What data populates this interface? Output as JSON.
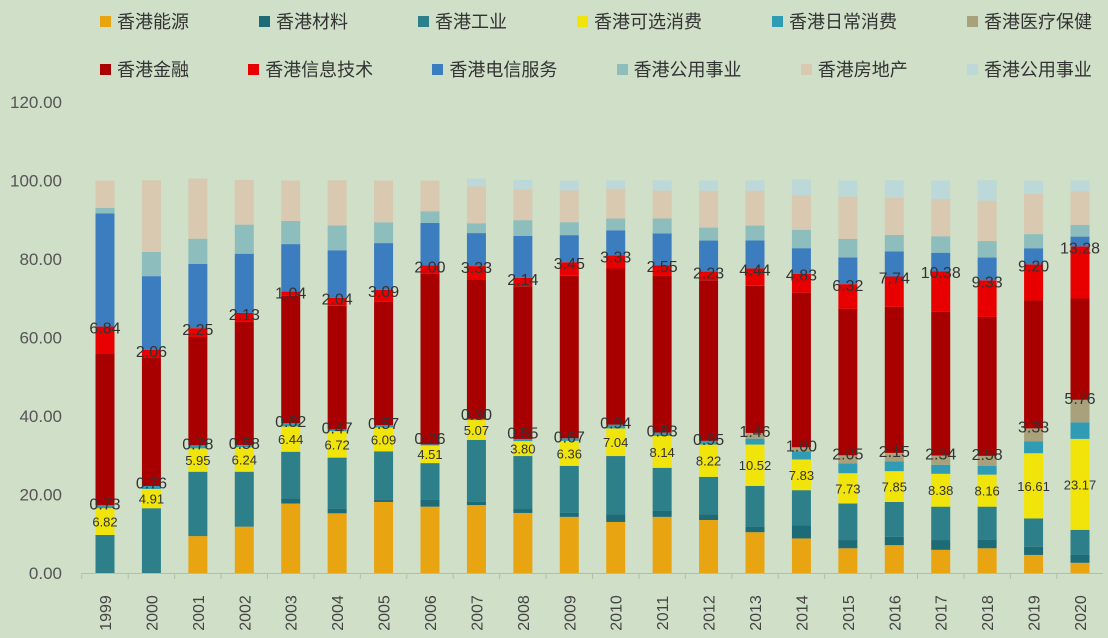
{
  "chart_data": {
    "type": "bar",
    "stacked": true,
    "title": "",
    "xlabel": "",
    "ylabel": "",
    "ylim": [
      0,
      120
    ],
    "yticks": [
      "0.00",
      "20.00",
      "40.00",
      "60.00",
      "80.00",
      "100.00",
      "120.00"
    ],
    "grid": false,
    "legend_position": "top",
    "categories": [
      "1999",
      "2000",
      "2001",
      "2002",
      "2003",
      "2004",
      "2005",
      "2006",
      "2007",
      "2008",
      "2009",
      "2010",
      "2011",
      "2012",
      "2013",
      "2014",
      "2015",
      "2016",
      "2017",
      "2018",
      "2019",
      "2020"
    ],
    "series": [
      {
        "name": "香港能源",
        "color": "#e8a511",
        "values": [
          0,
          0,
          9.4,
          11.8,
          17.7,
          15.2,
          18.1,
          16.9,
          17.3,
          15.3,
          14.3,
          13,
          14.3,
          13.5,
          10.4,
          8.8,
          6.3,
          7.1,
          5.9,
          6.3,
          4.6,
          2.6
        ]
      },
      {
        "name": "香港材料",
        "color": "#1e6b78",
        "values": [
          0,
          0,
          0,
          0,
          1.3,
          1.2,
          0.6,
          1.8,
          0.8,
          1,
          1,
          2,
          1.5,
          1.5,
          1.5,
          3.4,
          2.1,
          2.1,
          2.5,
          2.3,
          2.1,
          2
        ]
      },
      {
        "name": "香港工业",
        "color": "#2d7f8a",
        "values": [
          9.7,
          16.5,
          16.4,
          14,
          11.9,
          13,
          12.3,
          9.3,
          15.8,
          13.5,
          12,
          14.8,
          11,
          9.5,
          10.3,
          8.9,
          9.3,
          8.9,
          8.5,
          8.3,
          7.2,
          6.4
        ]
      },
      {
        "name": "香港可选消费",
        "color": "#f0e40a",
        "values": [
          6.82,
          4.91,
          5.95,
          6.24,
          6.44,
          6.72,
          6.09,
          4.51,
          5.07,
          3.8,
          6.36,
          7.04,
          8.14,
          8.22,
          10.52,
          7.83,
          7.73,
          7.85,
          8.38,
          8.16,
          16.61,
          23.17
        ],
        "labels": [
          "6.82",
          "4.91",
          "5.95",
          "6.24",
          "6.44",
          "6.72",
          "6.09",
          "4.51",
          "5.07",
          "3.80",
          "6.36",
          "7.04",
          "8.14",
          "8.22",
          "10.52",
          "7.83",
          "7.73",
          "7.85",
          "8.38",
          "8.16",
          "16.61",
          "23.17"
        ]
      },
      {
        "name": "香港日常消费",
        "color": "#2f9bb4",
        "values": [
          0.73,
          0.76,
          0.78,
          0.58,
          0.82,
          0.47,
          0.57,
          0.26,
          0.3,
          0.55,
          0.67,
          0.94,
          0.83,
          0.95,
          1.5,
          2.1,
          2.5,
          2.5,
          2.3,
          2.2,
          3,
          4.2
        ],
        "labels": [
          "0.73",
          "0.76",
          "0.78",
          "0.58",
          "0.82",
          "0.47",
          "0.57",
          "0.26",
          "0.30",
          "0.55",
          "0.67",
          "0.94",
          "0.83",
          "0.95",
          null,
          null,
          null,
          null,
          null,
          null,
          null,
          null
        ]
      },
      {
        "name": "香港医疗保健",
        "color": "#a9a17c",
        "values": [
          0,
          0,
          0,
          0,
          0,
          0,
          0,
          0,
          0,
          0,
          0,
          0,
          0,
          0,
          1.46,
          1.0,
          2.05,
          2.15,
          2.34,
          2.58,
          3.33,
          5.76
        ],
        "labels": [
          null,
          null,
          null,
          null,
          null,
          null,
          null,
          null,
          null,
          null,
          null,
          null,
          null,
          null,
          "1.46",
          "1.00",
          "2.05",
          "2.15",
          "2.34",
          "2.58",
          "3.33",
          "5.76"
        ]
      },
      {
        "name": "香港金融",
        "color": "#a80000",
        "values": [
          38.7,
          32.6,
          27.6,
          31.5,
          32.5,
          31.5,
          31.4,
          43.6,
          35.6,
          38.9,
          41.4,
          39.8,
          40.1,
          40.9,
          37.5,
          39.4,
          37.3,
          37.2,
          36.6,
          35.4,
          32.6,
          25.8
        ]
      },
      {
        "name": "香港信息技术",
        "color": "#e80000",
        "values": [
          6.84,
          2.06,
          2.25,
          2.13,
          1.04,
          2.04,
          3.09,
          2.0,
          3.33,
          2.14,
          3.45,
          3.33,
          2.55,
          2.23,
          4.44,
          4.83,
          6.32,
          7.74,
          10.38,
          9.33,
          9.2,
          13.28
        ],
        "labels": [
          "6.84",
          "2.06",
          "2.25",
          "2.13",
          "1.04",
          "2.04",
          "3.09",
          "2.00",
          "3.33",
          "2.14",
          "3.45",
          "3.33",
          "2.55",
          "2.23",
          "4.44",
          "4.83",
          "6.32",
          "7.74",
          "10.38",
          "9.33",
          "9.20",
          "13.28"
        ]
      },
      {
        "name": "香港电信服务",
        "color": "#3c7dbf",
        "values": [
          28.8,
          18.8,
          16.4,
          15.1,
          12.1,
          12.1,
          11.9,
          10.8,
          8.4,
          10.7,
          6.9,
          6.4,
          8.1,
          7.9,
          7.1,
          6.5,
          6.8,
          6.4,
          4.7,
          5.8,
          4.1,
          2.5
        ]
      },
      {
        "name": "香港公用事业",
        "color": "#8dbdbd",
        "values": [
          1.4,
          6.2,
          6.4,
          7.4,
          5.9,
          6.3,
          5.3,
          3,
          2.5,
          4,
          3.3,
          3,
          3.8,
          3.3,
          3.8,
          4.7,
          4.7,
          4.2,
          4.2,
          4.2,
          3.6,
          3
        ]
      },
      {
        "name": "香港房地产",
        "color": "#d9c9b0",
        "values": [
          7.01,
          18.2,
          15.3,
          11.4,
          10.3,
          11.5,
          10.65,
          7.8,
          9.4,
          7.9,
          8.1,
          7.6,
          7.1,
          9.4,
          8.9,
          8.8,
          10.8,
          9.5,
          9.5,
          10.3,
          10.2,
          8.5
        ]
      },
      {
        "name": "香港公用事业",
        "color": "#bcd8d8",
        "values": [
          0,
          0,
          0,
          0,
          0,
          0,
          0,
          0,
          2,
          2.4,
          2.5,
          2.1,
          2.6,
          2.6,
          2.6,
          4,
          4.1,
          4.4,
          4.7,
          5.2,
          3.4,
          2.8
        ]
      }
    ]
  }
}
